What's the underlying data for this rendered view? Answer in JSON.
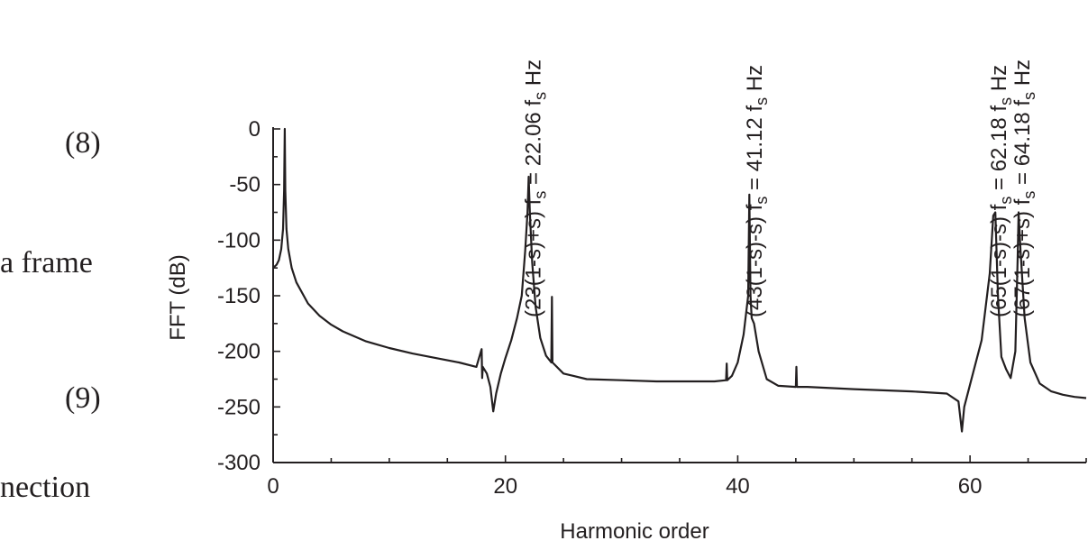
{
  "page_text": {
    "eq8": "(8)",
    "frame": "a frame",
    "eq9": "(9)",
    "nection": "nection"
  },
  "chart_data": {
    "type": "line",
    "xlabel": "Harmonic order",
    "ylabel": "FFT (dB)",
    "xlim": [
      0,
      70
    ],
    "ylim": [
      -300,
      0
    ],
    "x_ticks": [
      "0",
      "20",
      "40",
      "60"
    ],
    "y_ticks": [
      "0",
      "-50",
      "-100",
      "-150",
      "-200",
      "-250",
      "-300"
    ],
    "grid": false,
    "series": [
      {
        "x": [
          0,
          0.3,
          0.5,
          0.7,
          0.85,
          0.95,
          1.0,
          1.05,
          1.15,
          1.3,
          1.6,
          2,
          3,
          4,
          5,
          6,
          8,
          10,
          12,
          14,
          16,
          17.5,
          17.95,
          18.0,
          18.05,
          18.4,
          18.7,
          18.95,
          19.2,
          19.6,
          20,
          20.5,
          21,
          21.4,
          21.7,
          21.9,
          22.0,
          22.1,
          22.3,
          22.6,
          23,
          23.5,
          23.95,
          24.0,
          24.05,
          25,
          27,
          30,
          33,
          36,
          38,
          39.0,
          39.05,
          39.1,
          39.5,
          40,
          40.5,
          40.9,
          41.0,
          41.1,
          41.2,
          41.4,
          41.8,
          42.5,
          43.5,
          45.0,
          45.05,
          45.1,
          46,
          50,
          55,
          58,
          59.0,
          59.3,
          59.5,
          60,
          61,
          61.7,
          62.0,
          62.18,
          62.4,
          62.7,
          63.1,
          63.5,
          63.9,
          64.1,
          64.18,
          64.35,
          64.7,
          65.2,
          66,
          67,
          68,
          69,
          70
        ],
        "y": [
          -125,
          -122,
          -118,
          -108,
          -90,
          -55,
          0,
          -55,
          -90,
          -108,
          -125,
          -138,
          -157,
          -168,
          -176,
          -182,
          -191,
          -197,
          -202,
          -206,
          -210,
          -214,
          -198,
          -224,
          -214,
          -220,
          -232,
          -254,
          -238,
          -220,
          -206,
          -190,
          -170,
          -150,
          -110,
          -75,
          -43,
          -75,
          -120,
          -160,
          -188,
          -204,
          -210,
          -151,
          -210,
          -220,
          -225,
          -226,
          -227,
          -227,
          -227,
          -226,
          -211,
          -226,
          -222,
          -210,
          -185,
          -150,
          -59,
          -150,
          -170,
          -175,
          -200,
          -225,
          -231,
          -232,
          -214,
          -232,
          -232,
          -234,
          -236,
          -238,
          -245,
          -272,
          -250,
          -230,
          -190,
          -130,
          -78,
          -75,
          -150,
          -205,
          -216,
          -224,
          -200,
          -115,
          -75,
          -110,
          -170,
          -210,
          -229,
          -236,
          -239,
          -241,
          -242
        ]
      }
    ],
    "annotations": [
      {
        "text": "(23(1-s)+s) f",
        "sub": "s",
        "mid": " = 22.06 f",
        "sub2": "s",
        "tail": " Hz",
        "x": 22.06
      },
      {
        "text": "(43(1-s)-s) f",
        "sub": "s",
        "mid": " = 41.12 f",
        "sub2": "s",
        "tail": " Hz",
        "x": 41.12
      },
      {
        "text": "(65(1-s)-s) f",
        "sub": "s",
        "mid": " = 62.18 f",
        "sub2": "s",
        "tail": " Hz",
        "x": 62.18
      },
      {
        "text": "(67(1-s)+s) f",
        "sub": "s",
        "mid": " = 64.18 f",
        "sub2": "s",
        "tail": " Hz",
        "x": 64.18
      }
    ]
  }
}
